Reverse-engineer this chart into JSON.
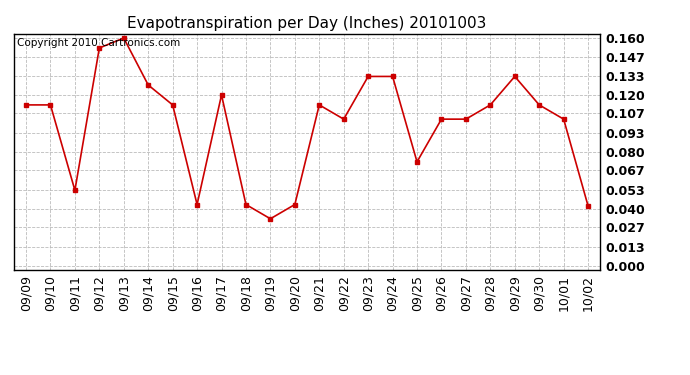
{
  "title": "Evapotranspiration per Day (Inches) 20101003",
  "copyright_text": "Copyright 2010 Cartronics.com",
  "x_labels": [
    "09/09",
    "09/10",
    "09/11",
    "09/12",
    "09/13",
    "09/14",
    "09/15",
    "09/16",
    "09/17",
    "09/18",
    "09/19",
    "09/20",
    "09/21",
    "09/22",
    "09/23",
    "09/24",
    "09/25",
    "09/26",
    "09/27",
    "09/28",
    "09/29",
    "09/30",
    "10/01",
    "10/02"
  ],
  "y_values": [
    0.113,
    0.113,
    0.053,
    0.153,
    0.16,
    0.127,
    0.113,
    0.043,
    0.12,
    0.043,
    0.033,
    0.043,
    0.113,
    0.103,
    0.133,
    0.133,
    0.073,
    0.103,
    0.103,
    0.113,
    0.133,
    0.113,
    0.103,
    0.042
  ],
  "y_ticks": [
    0.0,
    0.013,
    0.027,
    0.04,
    0.053,
    0.067,
    0.08,
    0.093,
    0.107,
    0.12,
    0.133,
    0.147,
    0.16
  ],
  "line_color": "#cc0000",
  "marker": "s",
  "marker_size": 2.5,
  "background_color": "#ffffff",
  "plot_bg_color": "#ffffff",
  "grid_color": "#bbbbbb",
  "ylim_min": -0.003,
  "ylim_max": 0.163,
  "title_fontsize": 11,
  "tick_fontsize": 9,
  "copyright_fontsize": 7.5
}
